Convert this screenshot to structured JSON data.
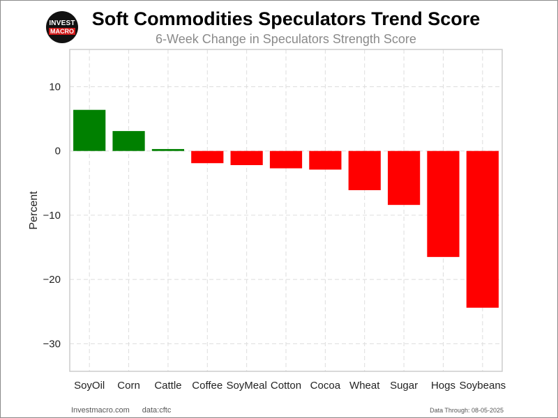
{
  "logo": {
    "line1": "INVEST",
    "line2": "MACRO"
  },
  "footer": {
    "site": "Investmacro.com",
    "source": "data:cftc",
    "data_through": "Data Through: 08-05-2025"
  },
  "colors": {
    "positive": "#008000",
    "negative": "#ff0000",
    "grid": "#dddddd",
    "frame": "#cccccc"
  },
  "chart_data": {
    "type": "bar",
    "title": "Soft Commodities Speculators Trend Score",
    "subtitle": "6-Week Change in Speculators Strength Score",
    "xlabel": "",
    "ylabel": "Percent",
    "categories": [
      "SoyOil",
      "Corn",
      "Cattle",
      "Coffee",
      "SoyMeal",
      "Cotton",
      "Cocoa",
      "Wheat",
      "Sugar",
      "Hogs",
      "Soybeans"
    ],
    "values": [
      6.4,
      3.1,
      0.3,
      -1.9,
      -2.2,
      -2.7,
      -2.9,
      -6.1,
      -8.4,
      -16.5,
      -24.4
    ],
    "ylim": [
      -34.3,
      15.8
    ],
    "yticks": [
      10,
      0,
      -10,
      -20,
      -30
    ],
    "ytick_labels": [
      "10",
      "0",
      "−10",
      "−20",
      "−30"
    ],
    "grid": true
  }
}
